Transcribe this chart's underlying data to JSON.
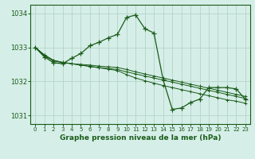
{
  "title": "Graphe pression niveau de la mer (hPa)",
  "background_color": "#d6eee8",
  "grid_color": "#b8d8cc",
  "line_color": "#1a5c1a",
  "xlim": [
    -0.5,
    23.5
  ],
  "ylim": [
    1030.75,
    1034.25
  ],
  "xticks": [
    0,
    1,
    2,
    3,
    4,
    5,
    6,
    7,
    8,
    9,
    10,
    11,
    12,
    13,
    14,
    15,
    16,
    17,
    18,
    19,
    20,
    21,
    22,
    23
  ],
  "yticks": [
    1031,
    1032,
    1033,
    1034
  ],
  "series": [
    [
      1033.0,
      1032.78,
      1032.62,
      1032.56,
      1032.52,
      1032.48,
      1032.44,
      1032.4,
      1032.36,
      1032.32,
      1032.2,
      1032.1,
      1032.02,
      1031.95,
      1031.88,
      1031.82,
      1031.76,
      1031.7,
      1031.64,
      1031.58,
      1031.52,
      1031.46,
      1031.42,
      1031.36
    ],
    [
      1033.0,
      1032.78,
      1032.62,
      1032.56,
      1032.52,
      1032.48,
      1032.44,
      1032.41,
      1032.38,
      1032.35,
      1032.28,
      1032.22,
      1032.16,
      1032.1,
      1032.04,
      1031.98,
      1031.92,
      1031.86,
      1031.8,
      1031.74,
      1031.68,
      1031.62,
      1031.56,
      1031.5
    ],
    [
      1033.0,
      1032.75,
      1032.6,
      1032.55,
      1032.52,
      1032.5,
      1032.48,
      1032.45,
      1032.43,
      1032.41,
      1032.35,
      1032.28,
      1032.22,
      1032.16,
      1032.1,
      1032.04,
      1031.98,
      1031.92,
      1031.86,
      1031.8,
      1031.74,
      1031.68,
      1031.62,
      1031.56
    ],
    [
      1033.0,
      1032.72,
      1032.55,
      1032.52,
      1032.68,
      1032.82,
      1033.05,
      1033.15,
      1033.28,
      1033.38,
      1033.88,
      1033.95,
      1033.55,
      1033.42,
      1032.05,
      1031.18,
      1031.22,
      1031.38,
      1031.48,
      1031.82,
      1031.82,
      1031.82,
      1031.78,
      1031.48
    ]
  ]
}
